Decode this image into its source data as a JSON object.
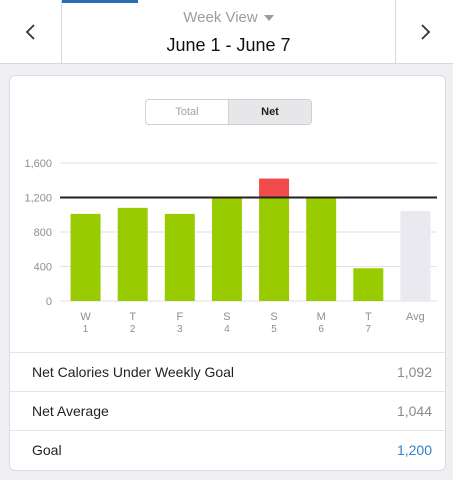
{
  "header": {
    "view_label": "Week View",
    "date_range": "June 1 - June 7"
  },
  "toggle": {
    "total_label": "Total",
    "net_label": "Net",
    "active": "Net"
  },
  "chart_data": {
    "type": "bar",
    "categories": [
      "W",
      "T",
      "F",
      "S",
      "S",
      "M",
      "T",
      "Avg"
    ],
    "sub_labels": [
      "1",
      "2",
      "3",
      "4",
      "5",
      "6",
      "7",
      ""
    ],
    "values": [
      1010,
      1080,
      1010,
      1200,
      1420,
      1200,
      380,
      1044
    ],
    "goal": 1200,
    "ylim": [
      0,
      1600
    ],
    "yticks": [
      "0",
      "400",
      "800",
      "1,200",
      "1,600"
    ],
    "ytick_values": [
      0,
      400,
      800,
      1200,
      1600
    ],
    "colors": {
      "under": "#99cc00",
      "over": "#f24b4b",
      "avg": "#e9e9ef",
      "goal_line": "#222222",
      "grid": "#e2e2e6"
    },
    "grid": true
  },
  "stats": [
    {
      "label": "Net Calories Under Weekly Goal",
      "value": "1,092"
    },
    {
      "label": "Net Average",
      "value": "1,044"
    },
    {
      "label": "Goal",
      "value": "1,200"
    }
  ]
}
